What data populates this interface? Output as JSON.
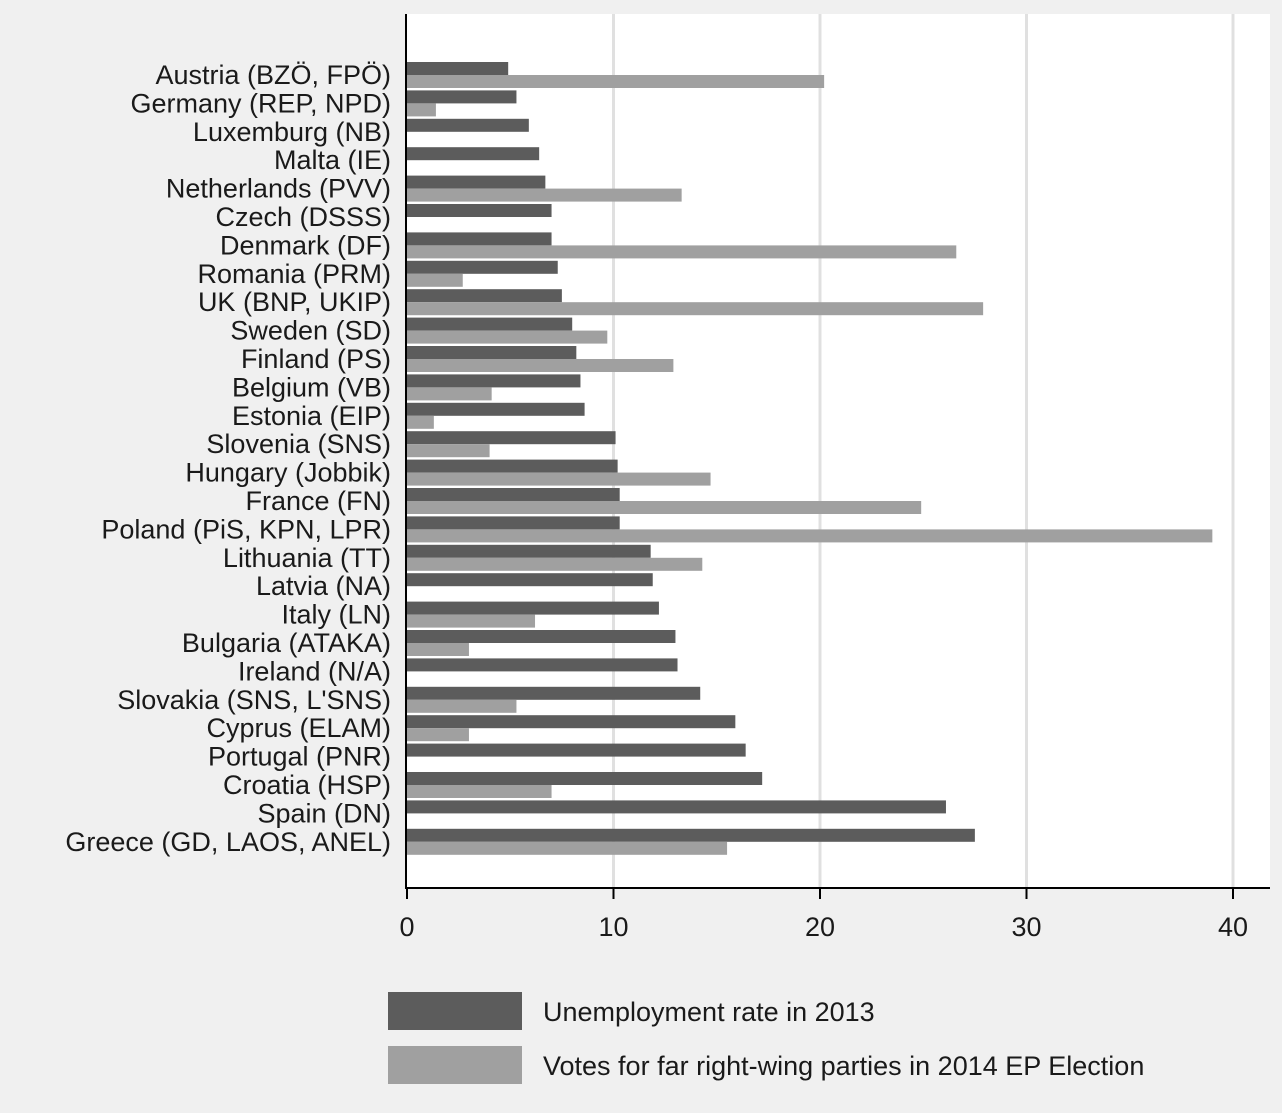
{
  "chart_data": {
    "type": "bar",
    "orientation": "horizontal",
    "categories": [
      "Austria (BZÖ, FPÖ)",
      "Germany (REP, NPD)",
      "Luxemburg (NB)",
      "Malta (IE)",
      "Netherlands (PVV)",
      "Czech (DSSS)",
      "Denmark (DF)",
      "Romania (PRM)",
      "UK (BNP, UKIP)",
      "Sweden (SD)",
      "Finland (PS)",
      "Belgium (VB)",
      "Estonia (EIP)",
      "Slovenia (SNS)",
      "Hungary (Jobbik)",
      "France (FN)",
      "Poland (PiS, KPN, LPR)",
      "Lithuania (TT)",
      "Latvia (NA)",
      "Italy (LN)",
      "Bulgaria (ATAKA)",
      "Ireland (N/A)",
      "Slovakia (SNS, L'SNS)",
      "Cyprus (ELAM)",
      "Portugal (PNR)",
      "Croatia (HSP)",
      "Spain (DN)",
      "Greece (GD, LAOS, ANEL)"
    ],
    "series": [
      {
        "name": "Unemployment rate in 2013",
        "color": "#5c5c5c",
        "values": [
          4.9,
          5.3,
          5.9,
          6.4,
          6.7,
          7.0,
          7.0,
          7.3,
          7.5,
          8.0,
          8.2,
          8.4,
          8.6,
          10.1,
          10.2,
          10.3,
          10.3,
          11.8,
          11.9,
          12.2,
          13.0,
          13.1,
          14.2,
          15.9,
          16.4,
          17.2,
          26.1,
          27.5
        ]
      },
      {
        "name": "Votes for far right-wing parties in 2014 EP Election",
        "color": "#a0a0a0",
        "values": [
          20.2,
          1.4,
          0,
          0,
          13.3,
          0,
          26.6,
          2.7,
          27.9,
          9.7,
          12.9,
          4.1,
          1.3,
          4.0,
          14.7,
          24.9,
          39.0,
          14.3,
          0,
          6.2,
          3.0,
          0,
          5.3,
          3.0,
          0,
          7.0,
          0,
          15.5
        ]
      }
    ],
    "xticks": [
      0,
      10,
      20,
      30,
      40
    ],
    "xlim": [
      0,
      42
    ],
    "grid": true,
    "legend_position": "bottom"
  }
}
